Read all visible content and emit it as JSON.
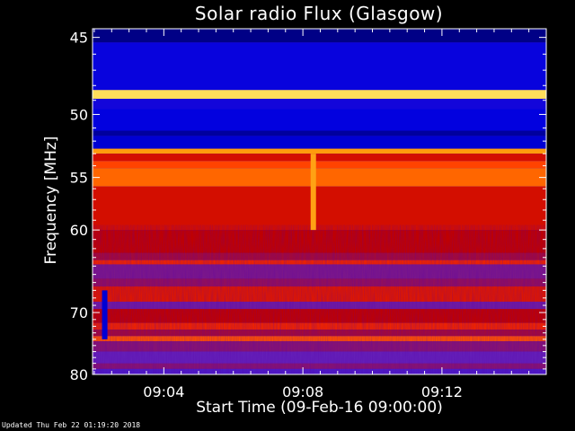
{
  "chart_data": {
    "type": "heatmap",
    "title": "Solar radio Flux (Glasgow)",
    "xlabel": "Start Time (09-Feb-16 09:00:00)",
    "ylabel": "Frequency [MHz]",
    "x_range_minutes": [
      1.95,
      15.0
    ],
    "y_range_mhz": [
      44.5,
      80.0
    ],
    "x_ticks": [
      {
        "value": 4,
        "label": "09:04"
      },
      {
        "value": 8,
        "label": "09:08"
      },
      {
        "value": 12,
        "label": "09:12"
      }
    ],
    "y_ticks": [
      {
        "value": 45,
        "label": "45"
      },
      {
        "value": 50,
        "label": "50"
      },
      {
        "value": 55,
        "label": "55"
      },
      {
        "value": 60,
        "label": "60"
      },
      {
        "value": 70,
        "label": "70"
      },
      {
        "value": 80,
        "label": "80"
      }
    ],
    "y_minor_ticks": [
      46,
      47,
      48,
      49,
      51,
      52,
      53,
      54,
      56,
      57,
      58,
      59,
      61,
      62,
      63,
      64,
      65,
      66,
      67,
      68,
      69,
      71,
      72,
      73,
      74,
      75,
      76,
      77,
      78,
      79
    ],
    "x_minor_ticks": [
      2,
      2.5,
      3,
      3.5,
      4.5,
      5,
      5.5,
      6,
      6.5,
      7,
      7.5,
      8.5,
      9,
      9.5,
      10,
      10.5,
      11,
      11.5,
      12.5,
      13,
      13.5,
      14,
      14.5
    ],
    "colormap": [
      "#000060",
      "#0000e0",
      "#6020c0",
      "#c00000",
      "#ff3000",
      "#ff9000",
      "#ffff80"
    ],
    "bands_mhz": [
      {
        "from": 44.5,
        "to": 45.3,
        "intensity": 0.05
      },
      {
        "from": 45.3,
        "to": 48.3,
        "intensity": 0.18
      },
      {
        "from": 48.3,
        "to": 48.9,
        "intensity": 0.95
      },
      {
        "from": 48.9,
        "to": 49.6,
        "intensity": 0.2
      },
      {
        "from": 49.6,
        "to": 51.2,
        "intensity": 0.17
      },
      {
        "from": 51.2,
        "to": 51.6,
        "intensity": 0.08
      },
      {
        "from": 51.6,
        "to": 52.6,
        "intensity": 0.15
      },
      {
        "from": 52.6,
        "to": 53.0,
        "intensity": 0.85
      },
      {
        "from": 53.0,
        "to": 53.6,
        "intensity": 0.55
      },
      {
        "from": 53.6,
        "to": 54.2,
        "intensity": 0.7
      },
      {
        "from": 54.2,
        "to": 55.8,
        "intensity": 0.76
      },
      {
        "from": 55.8,
        "to": 60.0,
        "intensity": 0.55
      },
      {
        "from": 60.0,
        "to": 62.5,
        "intensity": 0.5
      },
      {
        "from": 62.5,
        "to": 63.3,
        "intensity": 0.45
      },
      {
        "from": 63.3,
        "to": 63.8,
        "intensity": 0.62
      },
      {
        "from": 63.8,
        "to": 65.5,
        "intensity": 0.38
      },
      {
        "from": 65.5,
        "to": 66.5,
        "intensity": 0.42
      },
      {
        "from": 66.5,
        "to": 68.5,
        "intensity": 0.58
      },
      {
        "from": 68.5,
        "to": 69.5,
        "intensity": 0.36
      },
      {
        "from": 69.5,
        "to": 71.5,
        "intensity": 0.5
      },
      {
        "from": 71.5,
        "to": 72.5,
        "intensity": 0.62
      },
      {
        "from": 72.5,
        "to": 73.5,
        "intensity": 0.45
      },
      {
        "from": 73.5,
        "to": 74.3,
        "intensity": 0.72
      },
      {
        "from": 74.3,
        "to": 76.0,
        "intensity": 0.4
      },
      {
        "from": 76.0,
        "to": 78.0,
        "intensity": 0.34
      },
      {
        "from": 78.0,
        "to": 79.0,
        "intensity": 0.4
      },
      {
        "from": 79.0,
        "to": 80.0,
        "intensity": 0.3
      }
    ],
    "events": [
      {
        "time_min": 8.3,
        "freq_from": 53.0,
        "freq_to": 60.0,
        "note": "bright vertical streak"
      },
      {
        "time_min": 2.3,
        "freq_from": 67.0,
        "freq_to": 74.0,
        "note": "blue vertical band"
      }
    ],
    "grid": false,
    "legend": "none"
  },
  "footer": {
    "updated": "Updated Thu Feb 22 01:19:20 2018"
  }
}
